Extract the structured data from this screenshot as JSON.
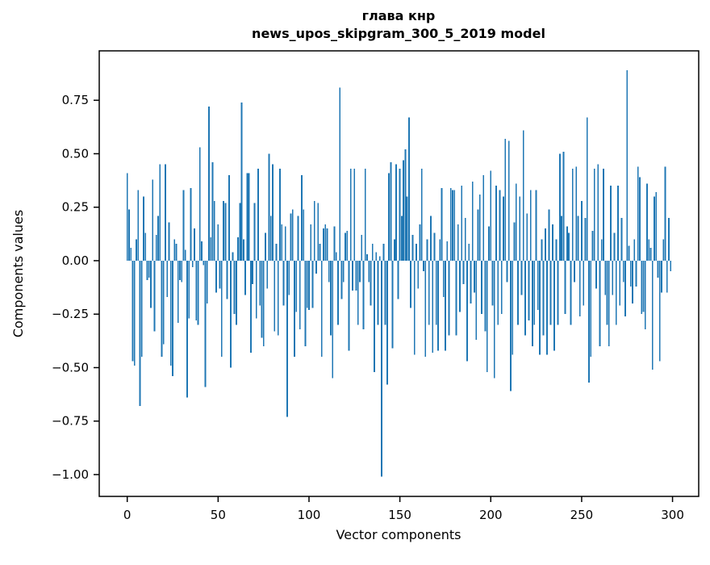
{
  "title": {
    "line1": "глава кнр",
    "line2": "news_upos_skipgram_300_5_2019 model"
  },
  "chart_data": {
    "type": "bar",
    "title": "глава кнр",
    "subtitle": "news_upos_skipgram_300_5_2019 model",
    "xlabel": "Vector components",
    "ylabel": "Components values",
    "bar_color": "#1f77b4",
    "background_color": "#ffffff",
    "spine_color": "#000000",
    "grid": false,
    "legend": null,
    "x_start": 0,
    "bar_width": 0.8,
    "xlim": [
      -15.4,
      314.4
    ],
    "ylim": [
      -1.102,
      0.981
    ],
    "xticks": [
      0,
      50,
      100,
      150,
      200,
      250,
      300
    ],
    "yticks": [
      -1.0,
      -0.75,
      -0.5,
      -0.25,
      0.0,
      0.25,
      0.5,
      0.75
    ],
    "values": [
      0.41,
      0.24,
      0.06,
      -0.47,
      -0.49,
      0.1,
      0.33,
      -0.68,
      -0.45,
      0.3,
      0.13,
      -0.09,
      -0.08,
      -0.22,
      0.38,
      -0.33,
      0.12,
      0.21,
      0.45,
      -0.45,
      -0.39,
      0.45,
      -0.17,
      0.18,
      -0.49,
      -0.54,
      0.1,
      0.08,
      -0.29,
      -0.09,
      -0.1,
      0.33,
      0.05,
      -0.64,
      -0.27,
      0.34,
      -0.03,
      0.15,
      -0.28,
      -0.3,
      0.53,
      0.09,
      -0.02,
      -0.59,
      -0.2,
      0.72,
      0.11,
      0.46,
      0.28,
      -0.15,
      0.17,
      -0.13,
      -0.45,
      0.28,
      0.27,
      -0.18,
      0.4,
      -0.5,
      0.04,
      -0.25,
      -0.3,
      0.11,
      0.27,
      0.74,
      0.1,
      -0.16,
      0.41,
      0.41,
      -0.43,
      -0.11,
      0.27,
      -0.27,
      0.43,
      -0.21,
      -0.36,
      -0.4,
      0.13,
      -0.13,
      0.5,
      0.21,
      0.45,
      -0.33,
      0.08,
      -0.35,
      0.43,
      0.17,
      -0.21,
      0.16,
      -0.73,
      -0.16,
      0.22,
      0.24,
      -0.45,
      -0.24,
      0.21,
      -0.32,
      0.4,
      0.24,
      -0.4,
      -0.22,
      -0.23,
      0.17,
      -0.22,
      0.28,
      -0.06,
      0.27,
      0.08,
      -0.45,
      0.15,
      0.17,
      0.15,
      -0.1,
      -0.35,
      -0.55,
      0.16,
      0.04,
      -0.3,
      0.81,
      -0.18,
      -0.1,
      0.13,
      0.14,
      -0.42,
      0.43,
      -0.14,
      0.43,
      -0.14,
      -0.3,
      -0.1,
      0.12,
      -0.32,
      0.43,
      0.03,
      -0.1,
      -0.21,
      0.08,
      -0.52,
      0.04,
      -0.3,
      0.02,
      -1.01,
      0.08,
      -0.3,
      -0.58,
      0.41,
      0.46,
      -0.41,
      0.1,
      0.45,
      -0.18,
      0.43,
      0.21,
      0.47,
      0.52,
      0.3,
      0.67,
      -0.22,
      0.12,
      -0.44,
      0.08,
      -0.13,
      0.17,
      0.43,
      -0.05,
      -0.45,
      0.1,
      -0.3,
      0.21,
      -0.43,
      0.13,
      -0.3,
      -0.42,
      0.1,
      0.34,
      -0.17,
      -0.42,
      0.09,
      -0.35,
      0.34,
      0.33,
      0.33,
      -0.35,
      0.17,
      -0.24,
      0.35,
      -0.11,
      0.2,
      -0.47,
      0.08,
      -0.2,
      0.37,
      -0.15,
      -0.37,
      0.24,
      0.31,
      -0.25,
      0.4,
      -0.33,
      -0.52,
      0.16,
      0.42,
      -0.21,
      -0.55,
      0.35,
      -0.3,
      0.33,
      -0.25,
      0.3,
      0.57,
      -0.1,
      0.56,
      -0.61,
      -0.44,
      0.18,
      0.36,
      -0.3,
      0.3,
      -0.16,
      0.61,
      -0.35,
      0.22,
      -0.28,
      0.33,
      -0.4,
      -0.3,
      0.33,
      -0.23,
      -0.44,
      0.1,
      -0.35,
      0.15,
      -0.44,
      0.24,
      -0.3,
      0.17,
      -0.42,
      0.1,
      -0.3,
      0.5,
      0.21,
      0.51,
      -0.25,
      0.16,
      0.13,
      -0.3,
      0.43,
      -0.1,
      0.44,
      0.21,
      -0.26,
      0.28,
      -0.21,
      0.2,
      0.67,
      -0.57,
      -0.45,
      0.14,
      0.43,
      -0.13,
      0.45,
      -0.4,
      0.1,
      0.43,
      -0.16,
      -0.3,
      -0.4,
      0.35,
      -0.16,
      0.13,
      -0.3,
      0.35,
      -0.21,
      0.2,
      -0.1,
      -0.26,
      0.89,
      0.07,
      -0.12,
      -0.2,
      0.1,
      -0.12,
      0.44,
      0.39,
      -0.25,
      -0.24,
      -0.32,
      0.36,
      0.1,
      0.06,
      -0.51,
      0.3,
      0.32,
      -0.08,
      -0.47,
      -0.15,
      0.1,
      0.44,
      -0.15,
      0.2,
      -0.05
    ]
  }
}
